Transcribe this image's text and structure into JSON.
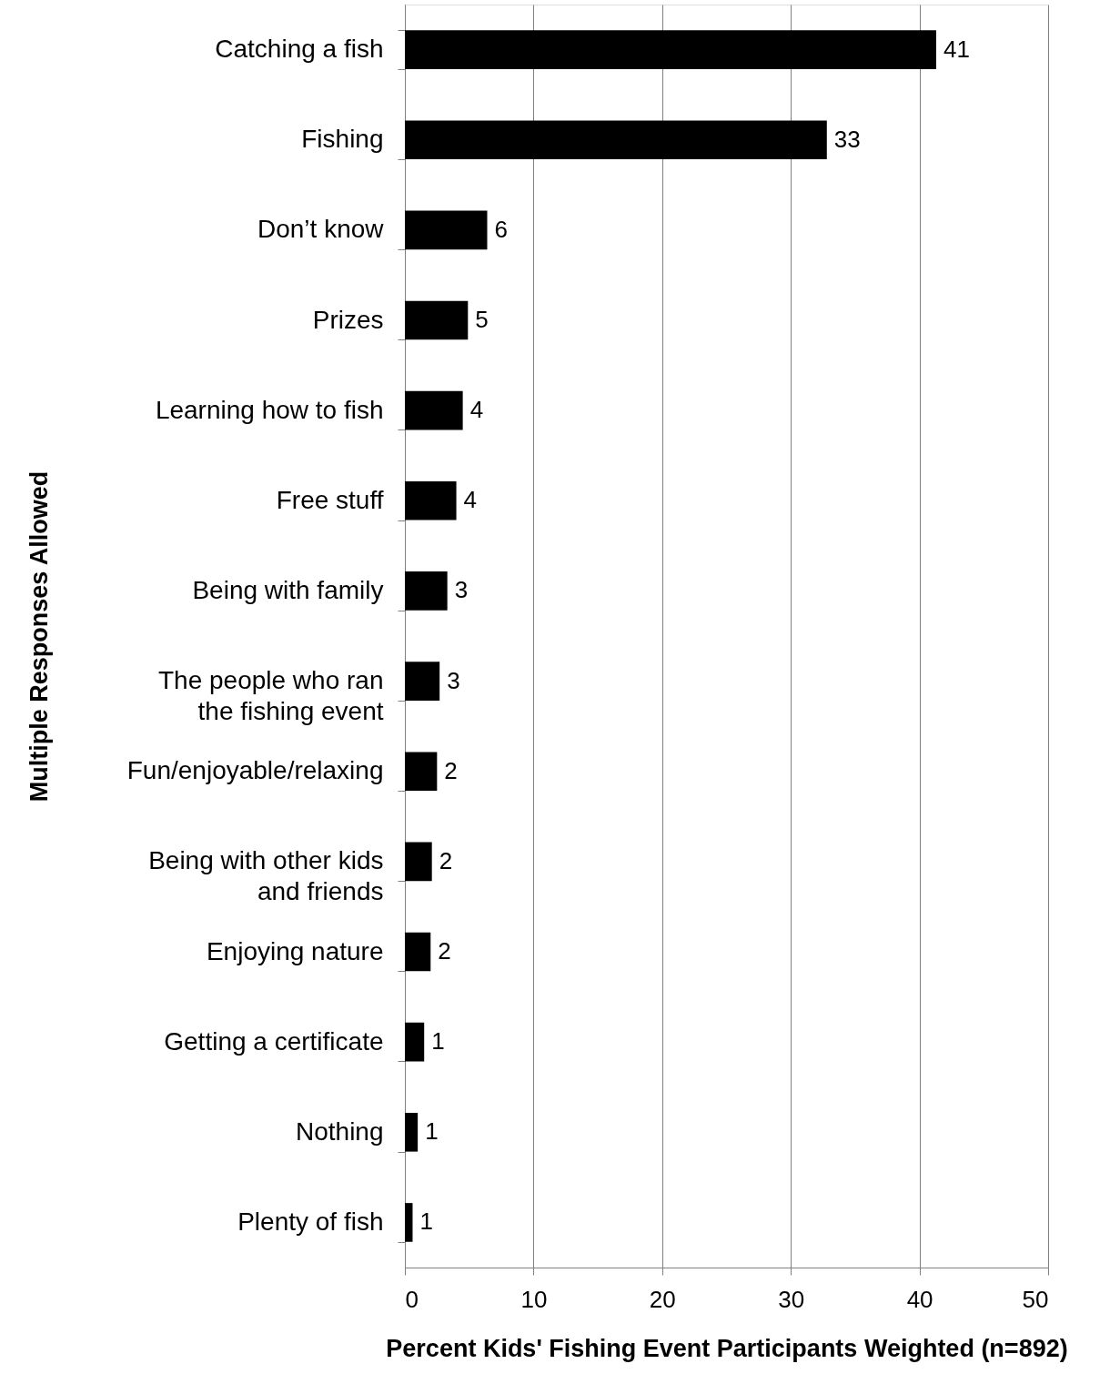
{
  "chart_data": {
    "type": "bar",
    "orientation": "horizontal",
    "xlabel": "Percent Kids' Fishing Event Participants Weighted (n=892)",
    "ylabel": "Multiple Responses Allowed",
    "categories": [
      "Catching a fish",
      "Fishing",
      "Don’t know",
      "Prizes",
      "Learning how to fish",
      "Free stuff",
      "Being with family",
      "The people who ran\nthe fishing event",
      "Fun/enjoyable/relaxing",
      "Being with other kids\nand friends",
      "Enjoying nature",
      "Getting a certificate",
      "Nothing",
      "Plenty of fish"
    ],
    "values": [
      41.3,
      32.8,
      6.4,
      4.9,
      4.5,
      4.0,
      3.3,
      2.7,
      2.5,
      2.1,
      2.0,
      1.5,
      1.0,
      0.6
    ],
    "value_labels": [
      "41",
      "33",
      "6",
      "5",
      "4",
      "4",
      "3",
      "3",
      "2",
      "2",
      "2",
      "1",
      "1",
      "1"
    ],
    "color": "#000000",
    "xlim": [
      0,
      50
    ],
    "xticks": [
      0,
      10,
      20,
      30,
      40,
      50
    ],
    "grid": "x"
  }
}
